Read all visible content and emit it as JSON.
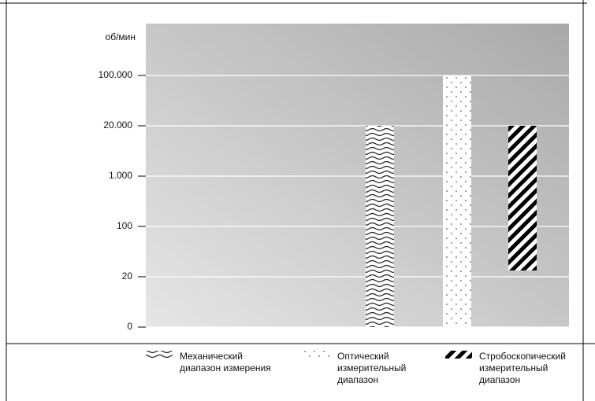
{
  "chart_data": {
    "type": "range-bar",
    "y_label": "об/мин",
    "yticks": [
      0,
      20,
      100,
      {
        "value": 1000,
        "label": "1.000"
      },
      {
        "value": 20000,
        "label": "20.000"
      },
      {
        "value": 100000,
        "label": "100.000"
      }
    ],
    "ylim": [
      0,
      100000
    ],
    "grid": true,
    "series": [
      {
        "name": "Механический диапазон измерения",
        "pattern": "wave",
        "low": 0,
        "high": 20000
      },
      {
        "name": "Оптический измерительный диапазон",
        "pattern": "dots",
        "low": 0,
        "high": 100000
      },
      {
        "name": "Стробоскопический измерительный диапазон",
        "pattern": "stripes",
        "low": 30,
        "high": 20000
      }
    ]
  }
}
